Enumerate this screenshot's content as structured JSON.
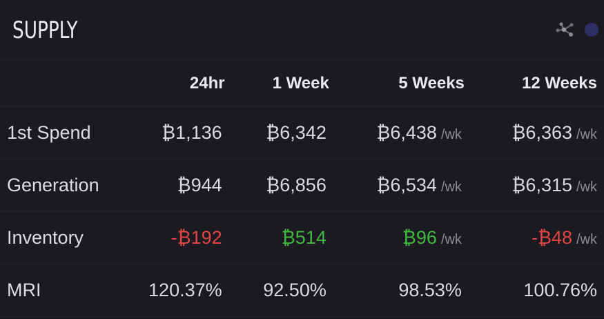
{
  "title": "SUPPLY",
  "colors": {
    "background": "#1b1a20",
    "negative": "#e04543",
    "positive": "#3fb83d",
    "accent_dot": "#2e2f63",
    "muted": "#8d8c95"
  },
  "icons": [
    "network-icon",
    "status-dot-icon"
  ],
  "columns": [
    "24hr",
    "1 Week",
    "5 Weeks",
    "12 Weeks"
  ],
  "rows": [
    {
      "label": "1st Spend",
      "cells": [
        {
          "value": "₿1,136",
          "unit": ""
        },
        {
          "value": "₿6,342",
          "unit": ""
        },
        {
          "value": "₿6,438",
          "unit": "/wk"
        },
        {
          "value": "₿6,363",
          "unit": "/wk"
        }
      ]
    },
    {
      "label": "Generation",
      "cells": [
        {
          "value": "₿944",
          "unit": ""
        },
        {
          "value": "₿6,856",
          "unit": ""
        },
        {
          "value": "₿6,534",
          "unit": "/wk"
        },
        {
          "value": "₿6,315",
          "unit": "/wk"
        }
      ]
    },
    {
      "label": "Inventory",
      "cells": [
        {
          "value": "-₿192",
          "unit": ""
        },
        {
          "value": "₿514",
          "unit": ""
        },
        {
          "value": "₿96",
          "unit": "/wk"
        },
        {
          "value": "-₿48",
          "unit": "/wk"
        }
      ]
    },
    {
      "label": "MRI",
      "cells": [
        {
          "value": "120.37%",
          "unit": ""
        },
        {
          "value": "92.50%",
          "unit": ""
        },
        {
          "value": "98.53%",
          "unit": ""
        },
        {
          "value": "100.76%",
          "unit": ""
        }
      ]
    }
  ]
}
